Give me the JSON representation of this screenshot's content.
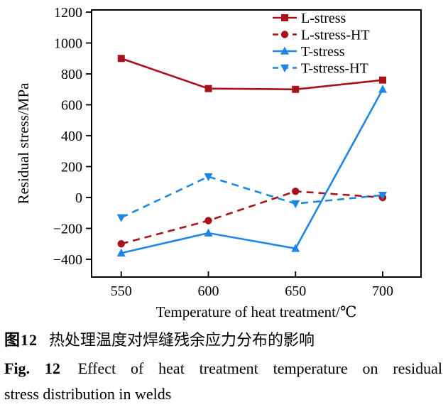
{
  "figure": {
    "caption_zh_label": "图12",
    "caption_zh_text": "热处理温度对焊缝残余应力分布的影响",
    "caption_en_label": "Fig. 12",
    "caption_en_line1": "Effect of heat treatment temperature on residual",
    "caption_en_line2": "stress distribution in welds"
  },
  "chart_data": {
    "type": "line",
    "title": "",
    "xlabel": "Temperature of heat treatment/℃",
    "ylabel": "Residual stress/MPa",
    "x": [
      550,
      600,
      650,
      700
    ],
    "x_ticks": [
      550,
      600,
      650,
      700
    ],
    "y_ticks": [
      -400,
      -200,
      0,
      200,
      400,
      600,
      800,
      1000,
      1200
    ],
    "xlim": [
      533,
      722
    ],
    "ylim": [
      -515,
      1214
    ],
    "grid": false,
    "legend_position": "top-right-inside",
    "frame_color": "#000000",
    "series": [
      {
        "name": "L-stress",
        "values": [
          900,
          705,
          700,
          760
        ],
        "color": "#a8121a",
        "line": "solid",
        "marker": "square"
      },
      {
        "name": "L-stress-HT",
        "values": [
          -300,
          -150,
          40,
          0
        ],
        "color": "#a8121a",
        "line": "dashed",
        "marker": "circle"
      },
      {
        "name": "T-stress",
        "values": [
          -360,
          -230,
          -330,
          700
        ],
        "color": "#1e87e6",
        "line": "solid",
        "marker": "triangle-up"
      },
      {
        "name": "T-stress-HT",
        "values": [
          -130,
          135,
          -40,
          15
        ],
        "color": "#1e87e6",
        "line": "dashed",
        "marker": "triangle-down"
      }
    ]
  }
}
